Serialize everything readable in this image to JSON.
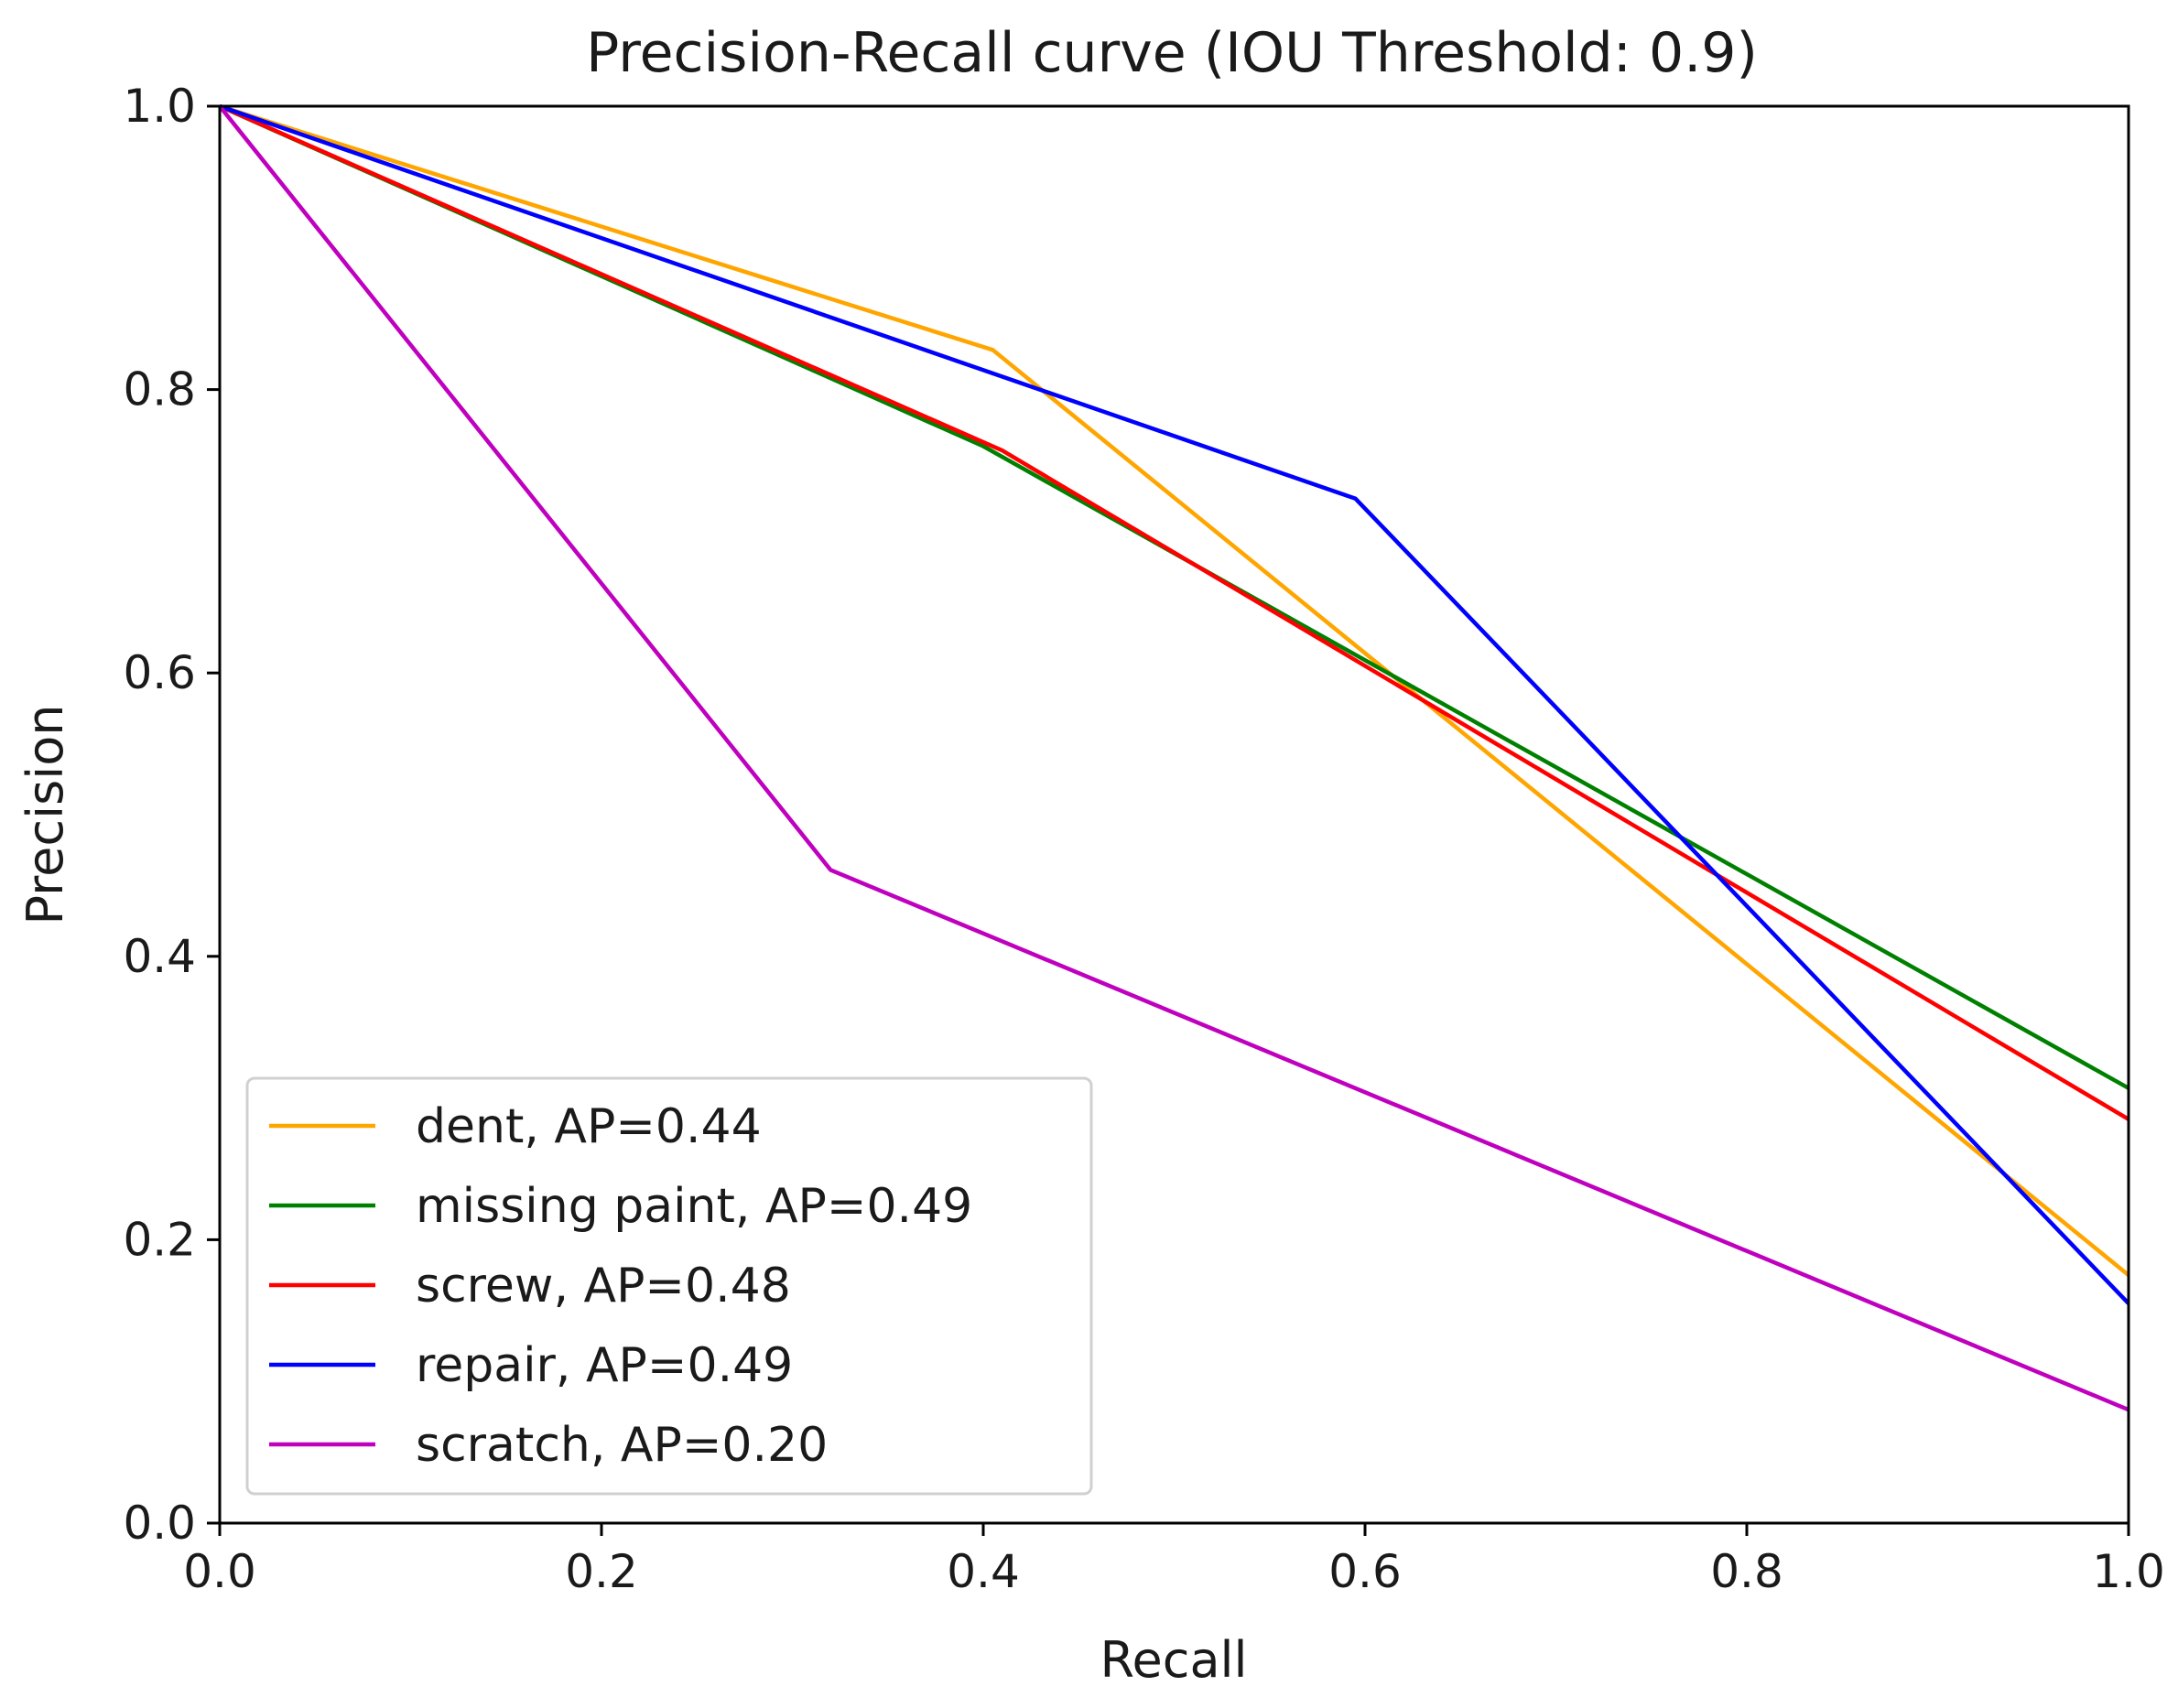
{
  "chart_data": {
    "type": "line",
    "title": "Precision-Recall curve (IOU Threshold: 0.9)",
    "xlabel": "Recall",
    "ylabel": "Precision",
    "xlim": [
      0.0,
      1.0
    ],
    "ylim": [
      0.0,
      1.0
    ],
    "xticks": [
      0.0,
      0.2,
      0.4,
      0.6,
      0.8,
      1.0
    ],
    "yticks": [
      0.0,
      0.2,
      0.4,
      0.6,
      0.8,
      1.0
    ],
    "xtick_labels": [
      "0.0",
      "0.2",
      "0.4",
      "0.6",
      "0.8",
      "1.0"
    ],
    "ytick_labels": [
      "0.0",
      "0.2",
      "0.4",
      "0.6",
      "0.8",
      "1.0"
    ],
    "grid": false,
    "legend_location": "lower-left",
    "series": [
      {
        "name": "dent, AP=0.44",
        "color": "#ffa500",
        "x": [
          0.0,
          0.405,
          1.0
        ],
        "y": [
          1.0,
          0.828,
          0.175
        ]
      },
      {
        "name": "missing paint, AP=0.49",
        "color": "#008000",
        "x": [
          0.0,
          0.4,
          1.0
        ],
        "y": [
          1.0,
          0.76,
          0.307
        ]
      },
      {
        "name": "screw, AP=0.48",
        "color": "#ff0000",
        "x": [
          0.0,
          0.41,
          1.0
        ],
        "y": [
          1.0,
          0.757,
          0.285
        ]
      },
      {
        "name": "repair, AP=0.49",
        "color": "#0000ff",
        "x": [
          0.0,
          0.595,
          1.0
        ],
        "y": [
          1.0,
          0.723,
          0.155
        ]
      },
      {
        "name": "scratch, AP=0.20",
        "color": "#bf00bf",
        "x": [
          0.0,
          0.32,
          1.0
        ],
        "y": [
          1.0,
          0.461,
          0.08
        ]
      }
    ]
  }
}
